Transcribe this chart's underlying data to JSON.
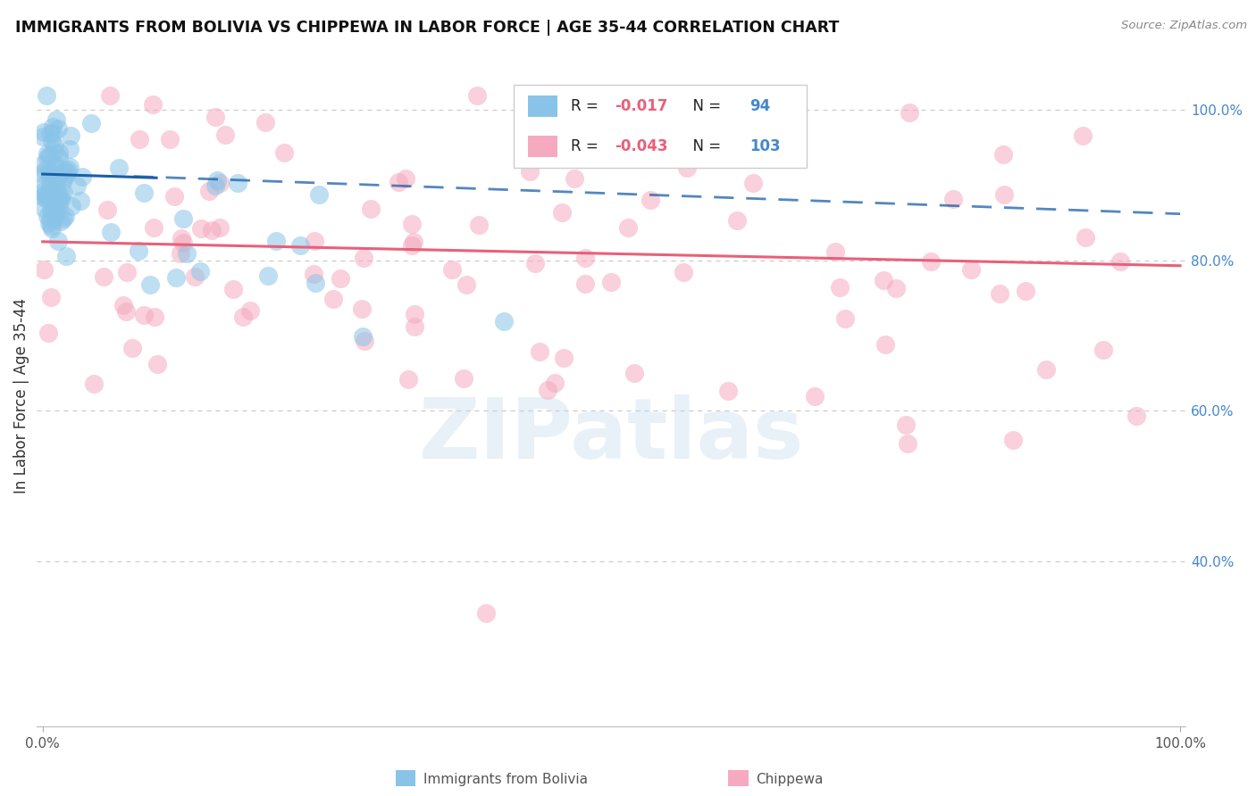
{
  "title": "IMMIGRANTS FROM BOLIVIA VS CHIPPEWA IN LABOR FORCE | AGE 35-44 CORRELATION CHART",
  "source": "Source: ZipAtlas.com",
  "ylabel": "In Labor Force | Age 35-44",
  "watermark": "ZIPatlas",
  "bolivia_R": -0.017,
  "bolivia_N": 94,
  "chippewa_R": -0.043,
  "chippewa_N": 103,
  "bolivia_color": "#89C4E8",
  "chippewa_color": "#F5AABF",
  "bolivia_line_color": "#1A5FA8",
  "chippewa_line_color": "#E8607A",
  "right_ytick_vals": [
    1.0,
    0.8,
    0.6,
    0.4
  ],
  "right_ytick_labels": [
    "100.0%",
    "80.0%",
    "60.0%",
    "40.0%"
  ],
  "background_color": "#FFFFFF",
  "grid_color": "#BBBBBB",
  "title_color": "#111111",
  "accent_color": "#4488CC",
  "ylim_min": 0.18,
  "ylim_max": 1.06,
  "xlim_min": -0.005,
  "xlim_max": 1.005,
  "bolivia_line_y0": 0.915,
  "bolivia_line_y1": 0.862,
  "chippewa_line_y0": 0.825,
  "chippewa_line_y1": 0.793
}
